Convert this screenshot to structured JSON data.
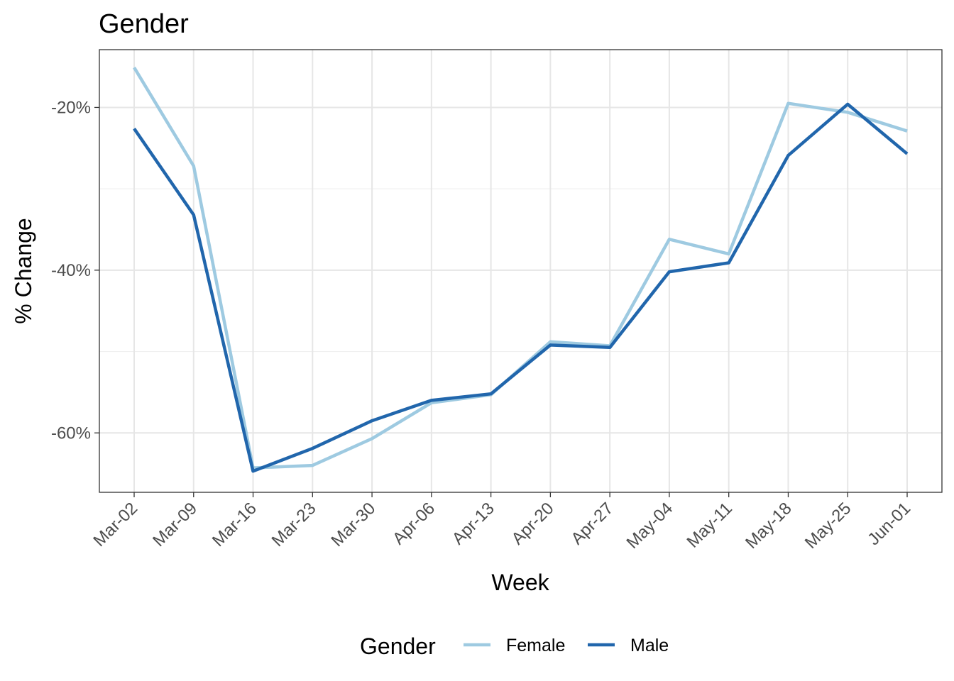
{
  "chart_data": {
    "type": "line",
    "title": "Gender",
    "xlabel": "Week",
    "ylabel": "% Change",
    "categories": [
      "Mar-02",
      "Mar-09",
      "Mar-16",
      "Mar-23",
      "Mar-30",
      "Apr-06",
      "Apr-13",
      "Apr-20",
      "Apr-27",
      "May-04",
      "May-11",
      "May-18",
      "May-25",
      "Jun-01"
    ],
    "y_ticks": [
      -60,
      -40,
      -20
    ],
    "y_tick_labels": [
      "-60%",
      "-40%",
      "-20%"
    ],
    "ylim": [
      -67.3,
      -12.9
    ],
    "grid": true,
    "legend": {
      "title": "Gender",
      "position": "bottom"
    },
    "series": [
      {
        "name": "Female",
        "color": "#9ecae1",
        "values": [
          -15.1,
          -27.2,
          -64.3,
          -64.0,
          -60.7,
          -56.3,
          -55.3,
          -48.8,
          -49.3,
          -36.2,
          -38.0,
          -19.5,
          -20.6,
          -22.9
        ]
      },
      {
        "name": "Male",
        "color": "#2166ac",
        "values": [
          -22.6,
          -33.2,
          -64.7,
          -61.9,
          -58.5,
          -56.0,
          -55.2,
          -49.2,
          -49.5,
          -40.2,
          -39.1,
          -25.9,
          -19.6,
          -25.7
        ]
      }
    ]
  }
}
